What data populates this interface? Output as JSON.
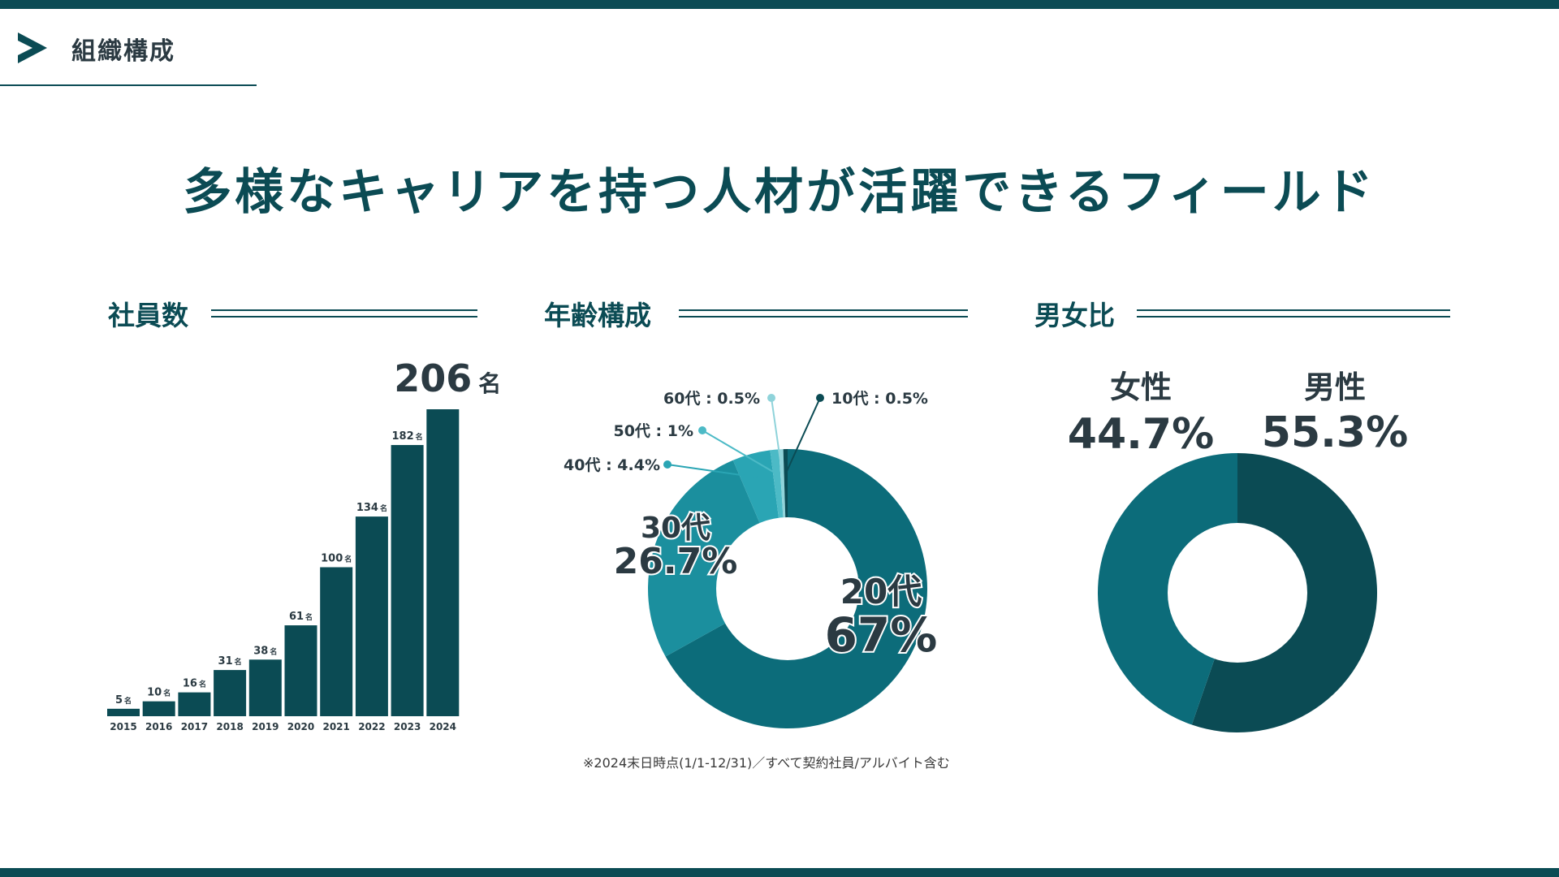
{
  "section": {
    "label": "組織構成",
    "icon": "chevron-right-icon"
  },
  "heading": "多様なキャリアを持つ人材が活躍できるフィールド",
  "panels": {
    "employees_title": "社員数",
    "age_title": "年齢構成",
    "gender_title": "男女比"
  },
  "colors": {
    "dark_teal": "#0b4b54",
    "teal": "#0c6c7a",
    "mid_teal": "#1b8f9e",
    "light_teal": "#2aa5b4",
    "pale_teal": "#4cbac6",
    "paler_teal": "#8fd3da",
    "label_dark": "#2b3a42"
  },
  "chart_data": [
    {
      "type": "bar",
      "categories": [
        "2015",
        "2016",
        "2017",
        "2018",
        "2019",
        "2020",
        "2021",
        "2022",
        "2023",
        "2024"
      ],
      "values": [
        5,
        10,
        16,
        31,
        38,
        61,
        100,
        134,
        182,
        206
      ],
      "unit": "名",
      "value_labels": [
        "5",
        "10",
        "16",
        "31",
        "38",
        "61",
        "100",
        "134",
        "182",
        "206"
      ],
      "highlight": {
        "value": "206",
        "unit": "名"
      },
      "ylim": [
        0,
        206
      ]
    },
    {
      "type": "pie",
      "variant": "donut",
      "slices": [
        {
          "label": "20代",
          "value": 67,
          "value_text": "67%"
        },
        {
          "label": "30代",
          "value": 26.7,
          "value_text": "26.7%"
        },
        {
          "label": "40代",
          "value": 4.4,
          "value_text": "4.4%"
        },
        {
          "label": "50代",
          "value": 1,
          "value_text": "1%"
        },
        {
          "label": "60代",
          "value": 0.5,
          "value_text": "0.5%"
        },
        {
          "label": "10代",
          "value": 0.5,
          "value_text": "0.5%"
        }
      ],
      "callouts": {
        "s40": "40代 : 4.4%",
        "s50": "50代 : 1%",
        "s60": "60代 : 0.5%",
        "s10": "10代 : 0.5%"
      },
      "note": "※2024末日時点(1/1-12/31)／すべて契約社員/アルバイト含む"
    },
    {
      "type": "pie",
      "variant": "donut",
      "slices": [
        {
          "label": "男性",
          "value": 55.3,
          "value_text": "55.3%"
        },
        {
          "label": "女性",
          "value": 44.7,
          "value_text": "44.7%"
        }
      ]
    }
  ]
}
